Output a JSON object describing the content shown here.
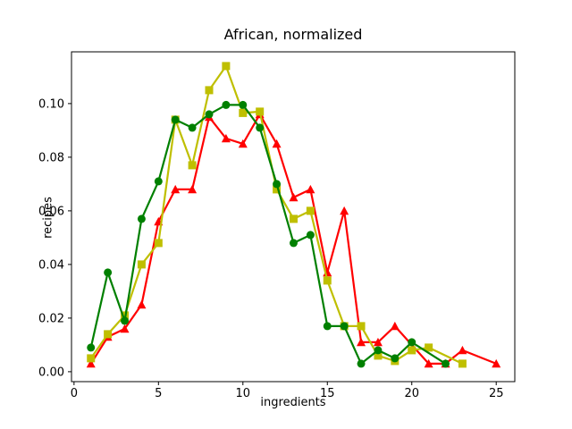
{
  "chart_data": {
    "type": "line",
    "title": "African, normalized",
    "xlabel": "ingredients",
    "ylabel": "recipes",
    "xlim": [
      -0.15,
      26.1
    ],
    "ylim": [
      -0.0037,
      0.1193
    ],
    "xticks": [
      0,
      5,
      10,
      15,
      20,
      25
    ],
    "yticks": [
      0.0,
      0.02,
      0.04,
      0.06,
      0.08,
      0.1
    ],
    "grid": false,
    "legend": "none",
    "background": "#ffffff",
    "spine_color": "#000000",
    "series": [
      {
        "name": "red-triangle-series",
        "color": "#ff0000",
        "marker": "triangle",
        "x": [
          1,
          2,
          3,
          4,
          5,
          6,
          7,
          8,
          9,
          10,
          11,
          12,
          13,
          14,
          15,
          16,
          17,
          18,
          19,
          21,
          22,
          23,
          25
        ],
        "y": [
          0.003,
          0.013,
          0.016,
          0.025,
          0.056,
          0.068,
          0.068,
          0.095,
          0.087,
          0.085,
          0.096,
          0.085,
          0.065,
          0.068,
          0.037,
          0.06,
          0.011,
          0.011,
          0.017,
          0.003,
          0.003,
          0.008,
          0.003
        ]
      },
      {
        "name": "yellow-square-series",
        "color": "#bfbf00",
        "marker": "square",
        "x": [
          1,
          2,
          3,
          4,
          5,
          6,
          7,
          8,
          9,
          10,
          11,
          12,
          13,
          14,
          15,
          16,
          17,
          18,
          19,
          20,
          21,
          23
        ],
        "y": [
          0.005,
          0.014,
          0.021,
          0.04,
          0.048,
          0.094,
          0.077,
          0.105,
          0.114,
          0.0965,
          0.097,
          0.068,
          0.057,
          0.06,
          0.034,
          0.017,
          0.017,
          0.006,
          0.004,
          0.008,
          0.009,
          0.003
        ]
      },
      {
        "name": "green-circle-series",
        "color": "#008000",
        "marker": "circle",
        "x": [
          1,
          2,
          3,
          4,
          5,
          6,
          7,
          8,
          9,
          10,
          11,
          12,
          13,
          14,
          15,
          16,
          17,
          18,
          19,
          20,
          22
        ],
        "y": [
          0.009,
          0.037,
          0.019,
          0.057,
          0.071,
          0.094,
          0.091,
          0.096,
          0.0995,
          0.0995,
          0.091,
          0.07,
          0.048,
          0.051,
          0.017,
          0.017,
          0.003,
          0.008,
          0.005,
          0.011,
          0.003
        ]
      }
    ]
  }
}
